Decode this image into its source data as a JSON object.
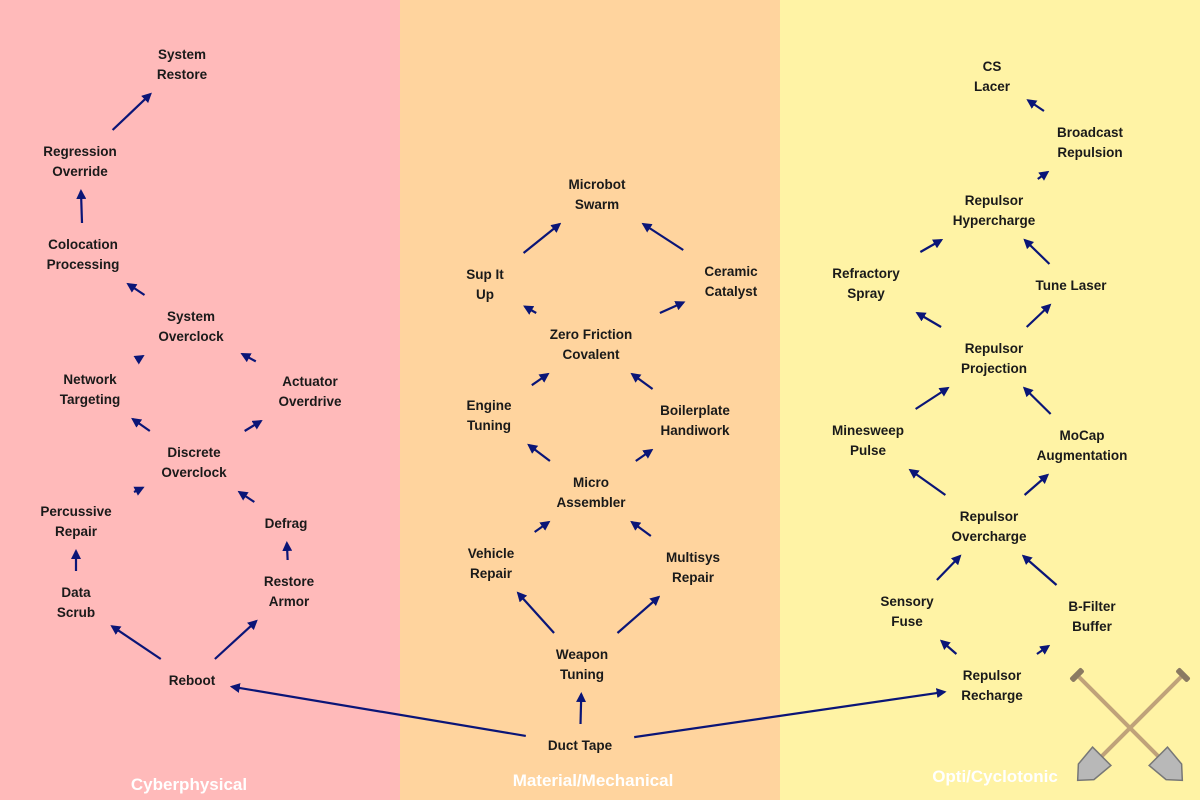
{
  "colors": {
    "cyberphysical_bg": "#ffbaba",
    "material_bg": "#ffd49e",
    "opti_bg": "#fff3a5",
    "arrow": "#0a1577",
    "title_text": "#ffffff",
    "node_text": "#1a1a1a"
  },
  "columns": {
    "cyberphysical": "Cyberphysical",
    "material": "Material/Mechanical",
    "opti": "Opti/Cyclotonic"
  },
  "nodes": {
    "system_restore": [
      "System",
      "Restore"
    ],
    "regression_override": [
      "Regression",
      "Override"
    ],
    "colocation_processing": [
      "Colocation",
      "Processing"
    ],
    "system_overclock": [
      "System",
      "Overclock"
    ],
    "network_targeting": [
      "Network",
      "Targeting"
    ],
    "actuator_overdrive": [
      "Actuator",
      "Overdrive"
    ],
    "discrete_overclock": [
      "Discrete",
      "Overclock"
    ],
    "percussive_repair": [
      "Percussive",
      "Repair"
    ],
    "defrag": [
      "Defrag"
    ],
    "data_scrub": [
      "Data",
      "Scrub"
    ],
    "restore_armor": [
      "Restore",
      "Armor"
    ],
    "reboot": [
      "Reboot"
    ],
    "microbot_swarm": [
      "Microbot",
      "Swarm"
    ],
    "sup_it_up": [
      "Sup It",
      "Up"
    ],
    "ceramic_catalyst": [
      "Ceramic",
      "Catalyst"
    ],
    "zero_friction_covalent": [
      "Zero Friction",
      "Covalent"
    ],
    "engine_tuning": [
      "Engine",
      "Tuning"
    ],
    "boilerplate_handiwork": [
      "Boilerplate",
      "Handiwork"
    ],
    "micro_assembler": [
      "Micro",
      "Assembler"
    ],
    "vehicle_repair": [
      "Vehicle",
      "Repair"
    ],
    "multisys_repair": [
      "Multisys",
      "Repair"
    ],
    "weapon_tuning": [
      "Weapon",
      "Tuning"
    ],
    "duct_tape": [
      "Duct Tape"
    ],
    "cs_lacer": [
      "CS",
      "Lacer"
    ],
    "broadcast_repulsion": [
      "Broadcast",
      "Repulsion"
    ],
    "repulsor_hypercharge": [
      "Repulsor",
      "Hypercharge"
    ],
    "refractory_spray": [
      "Refractory",
      "Spray"
    ],
    "tune_laser": [
      "Tune Laser"
    ],
    "repulsor_projection": [
      "Repulsor",
      "Projection"
    ],
    "minesweep_pulse": [
      "Minesweep",
      "Pulse"
    ],
    "mocap_augmentation": [
      "MoCap",
      "Augmentation"
    ],
    "repulsor_overcharge": [
      "Repulsor",
      "Overcharge"
    ],
    "sensory_fuse": [
      "Sensory",
      "Fuse"
    ],
    "b_filter_buffer": [
      "B-Filter",
      "Buffer"
    ],
    "repulsor_recharge": [
      "Repulsor",
      "Recharge"
    ]
  },
  "edges": [
    [
      "reboot",
      "data_scrub"
    ],
    [
      "reboot",
      "restore_armor"
    ],
    [
      "data_scrub",
      "percussive_repair"
    ],
    [
      "restore_armor",
      "defrag"
    ],
    [
      "percussive_repair",
      "discrete_overclock"
    ],
    [
      "defrag",
      "discrete_overclock"
    ],
    [
      "discrete_overclock",
      "network_targeting"
    ],
    [
      "discrete_overclock",
      "actuator_overdrive"
    ],
    [
      "network_targeting",
      "system_overclock"
    ],
    [
      "actuator_overdrive",
      "system_overclock"
    ],
    [
      "system_overclock",
      "colocation_processing"
    ],
    [
      "colocation_processing",
      "regression_override"
    ],
    [
      "regression_override",
      "system_restore"
    ],
    [
      "duct_tape",
      "reboot"
    ],
    [
      "duct_tape",
      "weapon_tuning"
    ],
    [
      "duct_tape",
      "repulsor_recharge"
    ],
    [
      "weapon_tuning",
      "vehicle_repair"
    ],
    [
      "weapon_tuning",
      "multisys_repair"
    ],
    [
      "vehicle_repair",
      "micro_assembler"
    ],
    [
      "multisys_repair",
      "micro_assembler"
    ],
    [
      "micro_assembler",
      "engine_tuning"
    ],
    [
      "micro_assembler",
      "boilerplate_handiwork"
    ],
    [
      "engine_tuning",
      "zero_friction_covalent"
    ],
    [
      "boilerplate_handiwork",
      "zero_friction_covalent"
    ],
    [
      "zero_friction_covalent",
      "sup_it_up"
    ],
    [
      "zero_friction_covalent",
      "ceramic_catalyst"
    ],
    [
      "sup_it_up",
      "microbot_swarm"
    ],
    [
      "ceramic_catalyst",
      "microbot_swarm"
    ],
    [
      "repulsor_recharge",
      "sensory_fuse"
    ],
    [
      "repulsor_recharge",
      "b_filter_buffer"
    ],
    [
      "sensory_fuse",
      "repulsor_overcharge"
    ],
    [
      "b_filter_buffer",
      "repulsor_overcharge"
    ],
    [
      "repulsor_overcharge",
      "minesweep_pulse"
    ],
    [
      "repulsor_overcharge",
      "mocap_augmentation"
    ],
    [
      "minesweep_pulse",
      "repulsor_projection"
    ],
    [
      "mocap_augmentation",
      "repulsor_projection"
    ],
    [
      "repulsor_projection",
      "refractory_spray"
    ],
    [
      "repulsor_projection",
      "tune_laser"
    ],
    [
      "tune_laser",
      "repulsor_hypercharge"
    ],
    [
      "refractory_spray",
      "repulsor_hypercharge"
    ],
    [
      "repulsor_hypercharge",
      "broadcast_repulsion"
    ],
    [
      "broadcast_repulsion",
      "cs_lacer"
    ]
  ],
  "decoration": "crossed-shovels-icon"
}
